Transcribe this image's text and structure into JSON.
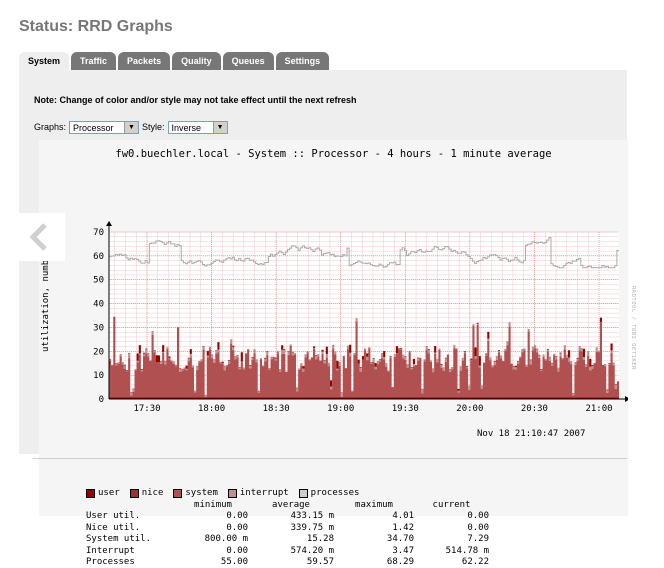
{
  "title": "Status: RRD Graphs",
  "tabs": [
    {
      "label": "System",
      "active": true
    },
    {
      "label": "Traffic"
    },
    {
      "label": "Packets"
    },
    {
      "label": "Quality"
    },
    {
      "label": "Queues"
    },
    {
      "label": "Settings"
    }
  ],
  "note": "Note: Change of color and/or style may not take effect until the next refresh",
  "form": {
    "graphs_label": "Graphs:",
    "graphs_value": "Processor",
    "style_label": "Style:",
    "style_value": "Inverse"
  },
  "graph": {
    "title": "fw0.buechler.local - System :: Processor - 4 hours - 1 minute average",
    "ylabel": "utilization, number",
    "watermark": "RRDTOOL / TOBI OETIKER",
    "timestamp": "Nov 18 21:10:47 2007",
    "legend": [
      {
        "label": "user",
        "color": "#990000"
      },
      {
        "label": "nice",
        "color": "#a03030"
      },
      {
        "label": "system",
        "color": "#b05050"
      },
      {
        "label": "interrupt",
        "color": "#c09090"
      },
      {
        "label": "processes",
        "color": "#cccccc"
      }
    ],
    "stats_headers": [
      "minimum",
      "average",
      "maximum",
      "current"
    ],
    "stats": [
      {
        "label": "User util.",
        "min": "0.00",
        "avg": "433.15 m",
        "max": "4.01",
        "cur": "0.00"
      },
      {
        "label": "Nice util.",
        "min": "0.00",
        "avg": "339.75 m",
        "max": "1.42",
        "cur": "0.00"
      },
      {
        "label": "System util.",
        "min": "800.00 m",
        "avg": "15.28",
        "max": "34.70",
        "cur": "7.29"
      },
      {
        "label": "Interrupt",
        "min": "0.00",
        "avg": "574.20 m",
        "max": "3.47",
        "cur": "514.78 m"
      },
      {
        "label": "Processes",
        "min": "55.00",
        "avg": "59.57",
        "max": "68.29",
        "cur": "62.22"
      }
    ]
  },
  "chart_data": {
    "type": "area",
    "title": "fw0.buechler.local - System :: Processor - 4 hours - 1 minute average",
    "ylabel": "utilization, number",
    "ylim": [
      0,
      70
    ],
    "yticks": [
      0,
      10,
      20,
      30,
      40,
      50,
      60,
      70
    ],
    "xticks": [
      "17:30",
      "18:00",
      "18:30",
      "19:00",
      "19:30",
      "20:00",
      "20:30",
      "21:00"
    ],
    "grid": true,
    "series": [
      {
        "name": "system",
        "kind": "area",
        "color": "#b05050",
        "min": 0.8,
        "average": 15.28,
        "max": 34.7,
        "current": 7.29
      },
      {
        "name": "interrupt",
        "kind": "area",
        "color": "#c09090",
        "min": 0,
        "average": 0.5742,
        "max": 3.47,
        "current": 0.51478
      },
      {
        "name": "user",
        "kind": "area",
        "color": "#990000",
        "min": 0,
        "average": 0.43315,
        "max": 4.01,
        "current": 0
      },
      {
        "name": "nice",
        "kind": "area",
        "color": "#a03030",
        "min": 0,
        "average": 0.33975,
        "max": 1.42,
        "current": 0
      },
      {
        "name": "processes",
        "kind": "line",
        "color": "#aaaaaa",
        "min": 55,
        "average": 59.57,
        "max": 68.29,
        "current": 62.22
      }
    ]
  }
}
